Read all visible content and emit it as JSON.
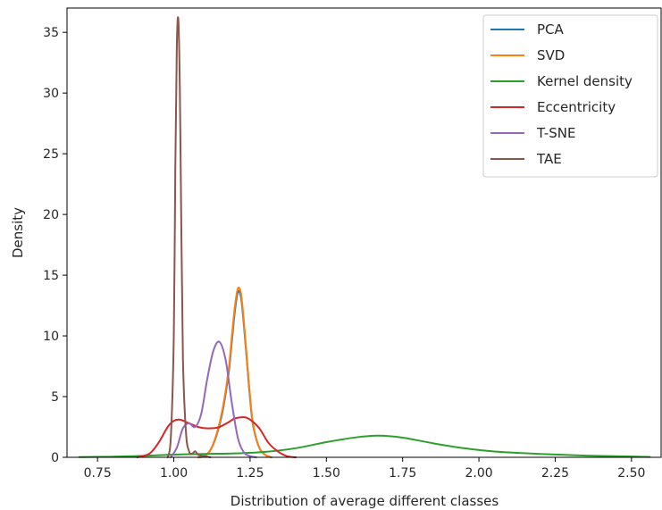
{
  "chart_data": {
    "type": "line",
    "title": "",
    "xlabel": "Distribution of average different classes",
    "ylabel": "Density",
    "xlim": [
      0.65,
      2.6
    ],
    "ylim": [
      0,
      37
    ],
    "xticks": [
      0.75,
      1.0,
      1.25,
      1.5,
      1.75,
      2.0,
      2.25,
      2.5
    ],
    "xtick_labels": [
      "0.75",
      "1.00",
      "1.25",
      "1.50",
      "1.75",
      "2.00",
      "2.25",
      "2.50"
    ],
    "yticks": [
      0,
      5,
      10,
      15,
      20,
      25,
      30,
      35
    ],
    "ytick_labels": [
      "0",
      "5",
      "10",
      "15",
      "20",
      "25",
      "30",
      "35"
    ],
    "grid": false,
    "legend_position": "top-right",
    "series": [
      {
        "name": "PCA",
        "color": "#1f77b4",
        "x": [
          1.08,
          1.1,
          1.12,
          1.14,
          1.16,
          1.18,
          1.19,
          1.2,
          1.21,
          1.22,
          1.23,
          1.24,
          1.25,
          1.26,
          1.28,
          1.3,
          1.32
        ],
        "y": [
          0.0,
          0.1,
          0.6,
          1.8,
          3.8,
          7.0,
          9.5,
          12.0,
          13.6,
          13.2,
          10.8,
          7.8,
          4.8,
          2.6,
          0.8,
          0.2,
          0.0
        ]
      },
      {
        "name": "SVD",
        "color": "#ff7f0e",
        "x": [
          1.08,
          1.1,
          1.12,
          1.14,
          1.16,
          1.18,
          1.19,
          1.2,
          1.21,
          1.22,
          1.23,
          1.24,
          1.25,
          1.26,
          1.28,
          1.3,
          1.32
        ],
        "y": [
          0.0,
          0.1,
          0.6,
          1.9,
          4.0,
          7.3,
          9.9,
          12.4,
          13.9,
          13.5,
          11.1,
          8.0,
          5.0,
          2.7,
          0.8,
          0.2,
          0.0
        ]
      },
      {
        "name": "Kernel density",
        "color": "#2ca02c",
        "x": [
          0.69,
          0.8,
          0.9,
          1.0,
          1.1,
          1.2,
          1.3,
          1.4,
          1.5,
          1.6,
          1.67,
          1.75,
          1.85,
          1.95,
          2.05,
          2.2,
          2.35,
          2.5,
          2.56
        ],
        "y": [
          0.02,
          0.05,
          0.12,
          0.22,
          0.28,
          0.32,
          0.45,
          0.75,
          1.25,
          1.65,
          1.78,
          1.62,
          1.15,
          0.75,
          0.48,
          0.28,
          0.14,
          0.06,
          0.03
        ]
      },
      {
        "name": "Eccentricity",
        "color": "#d62728",
        "x": [
          0.88,
          0.92,
          0.95,
          0.98,
          1.0,
          1.02,
          1.05,
          1.08,
          1.1,
          1.13,
          1.15,
          1.18,
          1.2,
          1.23,
          1.25,
          1.28,
          1.31,
          1.34,
          1.37,
          1.4
        ],
        "y": [
          0.0,
          0.3,
          1.2,
          2.5,
          3.0,
          3.1,
          2.8,
          2.5,
          2.4,
          2.4,
          2.5,
          2.9,
          3.2,
          3.3,
          3.1,
          2.4,
          1.2,
          0.5,
          0.1,
          0.0
        ]
      },
      {
        "name": "T-SNE",
        "color": "#9467bd",
        "x": [
          0.99,
          1.01,
          1.03,
          1.05,
          1.07,
          1.09,
          1.11,
          1.13,
          1.15,
          1.17,
          1.19,
          1.21,
          1.23,
          1.25,
          1.27
        ],
        "y": [
          0.0,
          0.8,
          2.4,
          2.8,
          2.5,
          3.6,
          6.5,
          8.8,
          9.5,
          8.0,
          4.5,
          1.6,
          0.4,
          0.1,
          0.0
        ]
      },
      {
        "name": "TAE",
        "color": "#8c564b",
        "x": [
          0.98,
          0.99,
          1.0,
          1.005,
          1.01,
          1.015,
          1.02,
          1.025,
          1.03,
          1.04,
          1.05,
          1.06,
          1.07,
          1.08,
          1.1,
          1.12
        ],
        "y": [
          0.0,
          1.5,
          10.0,
          24.0,
          34.0,
          36.0,
          30.0,
          18.0,
          8.0,
          2.0,
          0.5,
          0.3,
          0.5,
          0.2,
          0.1,
          0.0
        ]
      }
    ]
  }
}
